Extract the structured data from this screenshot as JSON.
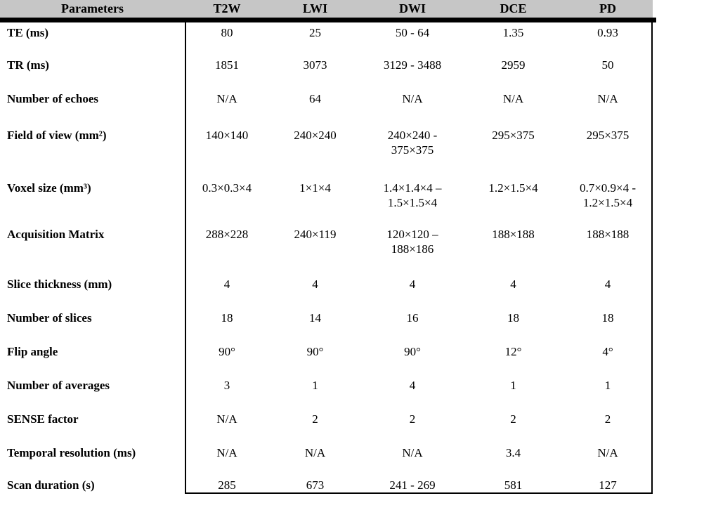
{
  "table": {
    "header": {
      "parameters_label": "Parameters",
      "columns": [
        "T2W",
        "LWI",
        "DWI",
        "DCE",
        "PD"
      ]
    },
    "rows": [
      {
        "label": "TE (ms)",
        "values": [
          "80",
          "25",
          "50 - 64",
          "1.35",
          "0.93"
        ]
      },
      {
        "label": "TR (ms)",
        "values": [
          "1851",
          "3073",
          "3129 - 3488",
          "2959",
          "50"
        ]
      },
      {
        "label": "Number of echoes",
        "values": [
          "N/A",
          "64",
          "N/A",
          "N/A",
          "N/A"
        ]
      },
      {
        "label": "Field of view (mm²)",
        "values": [
          "140×140",
          "240×240",
          "240×240 -\n375×375",
          "295×375",
          "295×375"
        ]
      },
      {
        "label": "Voxel size (mm³)",
        "values": [
          "0.3×0.3×4",
          "1×1×4",
          "1.4×1.4×4 –\n1.5×1.5×4",
          "1.2×1.5×4",
          "0.7×0.9×4 -\n1.2×1.5×4"
        ]
      },
      {
        "label": "Acquisition Matrix",
        "values": [
          "288×228",
          "240×119",
          "120×120 –\n188×186",
          "188×188",
          "188×188"
        ]
      },
      {
        "label": "Slice thickness (mm)",
        "values": [
          "4",
          "4",
          "4",
          "4",
          "4"
        ]
      },
      {
        "label": "Number of slices",
        "values": [
          "18",
          "14",
          "16",
          "18",
          "18"
        ]
      },
      {
        "label": "Flip angle",
        "values": [
          "90°",
          "90°",
          "90°",
          "12°",
          "4°"
        ]
      },
      {
        "label": "Number of averages",
        "values": [
          "3",
          "1",
          "4",
          "1",
          "1"
        ]
      },
      {
        "label": "SENSE factor",
        "values": [
          "N/A",
          "2",
          "2",
          "2",
          "2"
        ]
      },
      {
        "label": "Temporal resolution (ms)",
        "values": [
          "N/A",
          "N/A",
          "N/A",
          "3.4",
          "N/A"
        ]
      },
      {
        "label": "Scan duration (s)",
        "values": [
          "285",
          "673",
          "241 - 269",
          "581",
          "127"
        ]
      }
    ],
    "colors": {
      "header_bg": "#c6c6c6",
      "border": "#000000",
      "text": "#000000"
    }
  }
}
